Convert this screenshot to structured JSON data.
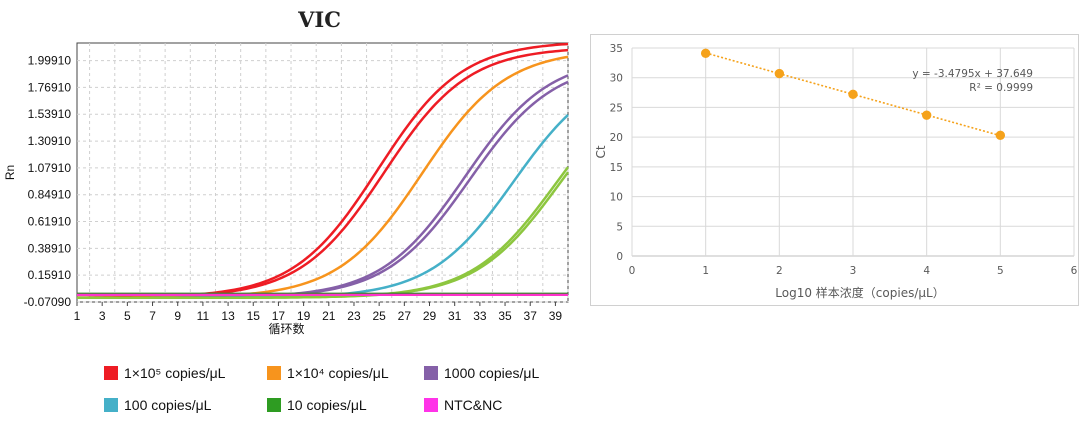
{
  "chart_data": [
    {
      "type": "line",
      "title": "VIC",
      "ylabel": "Rn",
      "xlabel": "循环数",
      "xlim": [
        1,
        40
      ],
      "ylim": [
        -0.0709,
        2.15
      ],
      "x_ticks": [
        "1",
        "3",
        "5",
        "7",
        "9",
        "11",
        "13",
        "15",
        "17",
        "19",
        "21",
        "23",
        "25",
        "27",
        "29",
        "31",
        "33",
        "35",
        "37",
        "39"
      ],
      "y_ticks": [
        "1.99910",
        "1.76910",
        "1.53910",
        "1.30910",
        "1.07910",
        "0.84910",
        "0.61910",
        "0.38910",
        "0.15910",
        "-0.07090"
      ],
      "grid": true,
      "series": [
        {
          "name": "1×10⁵ copies/μL",
          "color": "#ee1c24",
          "midpoint": 24.9,
          "plateau": 2.2
        },
        {
          "name": "1×10⁵ copies/μL",
          "color": "#ee1c24",
          "midpoint": 25.4,
          "plateau": 2.15
        },
        {
          "name": "1×10⁴ copies/μL",
          "color": "#f7941d",
          "midpoint": 28.4,
          "plateau": 2.13
        },
        {
          "name": "1000 copies/μL",
          "color": "#8560a8",
          "midpoint": 31.8,
          "plateau": 2.07
        },
        {
          "name": "1000 copies/μL",
          "color": "#8560a8",
          "midpoint": 32.2,
          "plateau": 2.03
        },
        {
          "name": "100 copies/μL",
          "color": "#45b0c8",
          "midpoint": 35.7,
          "plateau": 2.0
        },
        {
          "name": "10 copies/μL",
          "color": "#8dc63f",
          "midpoint": 39.0,
          "plateau": 1.95
        },
        {
          "name": "10 copies/μL",
          "color": "#8dc63f",
          "midpoint": 39.3,
          "plateau": 1.95
        },
        {
          "name": "10 copies/μL",
          "color": "#2e8b22",
          "baseline": 0.0
        },
        {
          "name": "NTC&NC",
          "color": "#ff33cc",
          "baseline": -0.01
        }
      ]
    },
    {
      "type": "scatter",
      "xlabel": "Log10 样本浓度（copies/μL）",
      "ylabel": "Ct",
      "xlim": [
        0,
        6
      ],
      "ylim": [
        0,
        35
      ],
      "x_ticks": [
        "0",
        "1",
        "2",
        "3",
        "4",
        "5",
        "6"
      ],
      "y_ticks": [
        "0",
        "5",
        "10",
        "15",
        "20",
        "25",
        "30",
        "35"
      ],
      "grid": true,
      "points": [
        {
          "x": 1,
          "y": 34.1
        },
        {
          "x": 2,
          "y": 30.7
        },
        {
          "x": 3,
          "y": 27.2
        },
        {
          "x": 4,
          "y": 23.7
        },
        {
          "x": 5,
          "y": 20.3
        }
      ],
      "trendline": {
        "slope": -3.4795,
        "intercept": 37.649
      },
      "equation": "y = -3.4795x + 37.649",
      "r2": "R² = 0.9999",
      "color": "#f5a21b"
    }
  ],
  "legend": [
    {
      "label": "1×10⁵ copies/μL",
      "color": "#ee1c24"
    },
    {
      "label": "1×10⁴ copies/μL",
      "color": "#f7941d"
    },
    {
      "label": "1000 copies/μL",
      "color": "#8560a8"
    },
    {
      "label": "100 copies/μL",
      "color": "#45b0c8"
    },
    {
      "label": "10 copies/μL",
      "color": "#2e9c22"
    },
    {
      "label": "NTC&NC",
      "color": "#ff33e8"
    }
  ]
}
